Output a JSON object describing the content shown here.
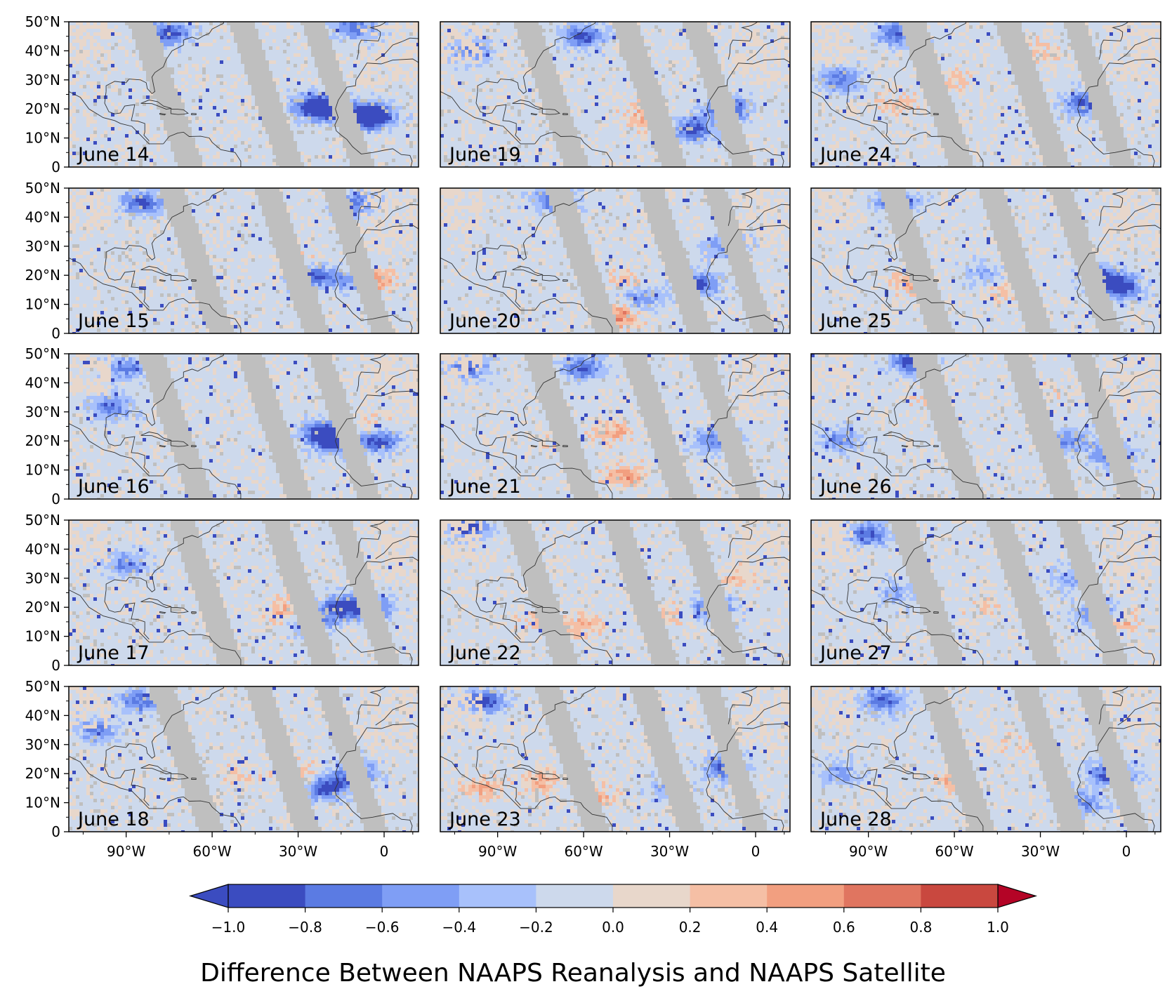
{
  "figure_title": "Difference Between NAAPS Reanalysis and NAAPS Satellite",
  "latitude_ticks": [
    "50°N",
    "40°N",
    "30°N",
    "20°N",
    "10°N",
    "0"
  ],
  "longitude_ticks": [
    "90°W",
    "60°W",
    "30°W",
    "0"
  ],
  "colorbar": {
    "ticks": [
      "−1.0",
      "−0.8",
      "−0.6",
      "−0.4",
      "−0.2",
      "0.0",
      "0.2",
      "0.4",
      "0.6",
      "0.8",
      "1.0"
    ],
    "colors": [
      "#3b4cc0",
      "#5b7be3",
      "#7f9ef5",
      "#a8c1fb",
      "#cdd9ec",
      "#e8d7cb",
      "#f5bfa5",
      "#f29f80",
      "#e07560",
      "#c9483f"
    ],
    "under_color": "#3b4cc0",
    "over_color": "#b40426",
    "extend": "both"
  },
  "colors": {
    "no_data": "#bfbfbf",
    "near_zero_negative": "#cdd9ec",
    "near_zero_positive": "#e8d7cb",
    "coastline": "#333333"
  },
  "panels": [
    {
      "label": "June 14"
    },
    {
      "label": "June 19"
    },
    {
      "label": "June 24"
    },
    {
      "label": "June 15"
    },
    {
      "label": "June 20"
    },
    {
      "label": "June 25"
    },
    {
      "label": "June 16"
    },
    {
      "label": "June 21"
    },
    {
      "label": "June 26"
    },
    {
      "label": "June 17"
    },
    {
      "label": "June 22"
    },
    {
      "label": "June 27"
    },
    {
      "label": "June 18"
    },
    {
      "label": "June 23"
    },
    {
      "label": "June 28"
    }
  ]
}
